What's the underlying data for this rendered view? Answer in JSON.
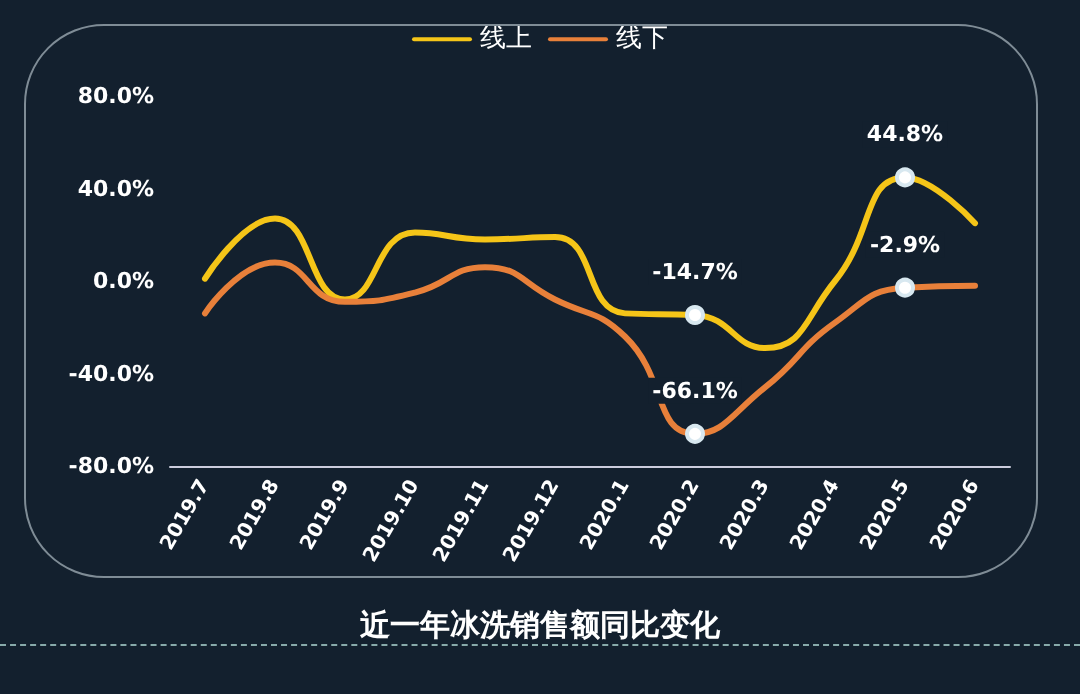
{
  "chart_data": {
    "type": "line",
    "title": "近一年冰洗销售额同比变化",
    "categories": [
      "2019.7",
      "2019.8",
      "2019.9",
      "2019.10",
      "2019.11",
      "2019.12",
      "2020.1",
      "2020.2",
      "2020.3",
      "2020.4",
      "2020.5",
      "2020.6"
    ],
    "series": [
      {
        "name": "线上",
        "color": "#f5c518",
        "values": [
          1,
          27,
          -8,
          21,
          18,
          19,
          -14,
          -14.7,
          -29,
          0,
          44.8,
          25
        ],
        "value_labels": [
          null,
          null,
          null,
          null,
          null,
          null,
          null,
          "-14.7%",
          null,
          null,
          "44.8%",
          null
        ]
      },
      {
        "name": "线下",
        "color": "#e8803a",
        "values": [
          -14,
          8,
          -9,
          -5,
          6,
          -8,
          -24,
          -66.1,
          -46,
          -18,
          -2.9,
          -2
        ],
        "value_labels": [
          null,
          null,
          null,
          null,
          null,
          null,
          null,
          "-66.1%",
          null,
          null,
          "-2.9%",
          null
        ]
      }
    ],
    "ylim": [
      -80,
      80
    ],
    "yticks": [
      {
        "value": -80,
        "label": "-80.0%"
      },
      {
        "value": -40,
        "label": "-40.0%"
      },
      {
        "value": 0,
        "label": "0.0%"
      },
      {
        "value": 40,
        "label": "40.0%"
      },
      {
        "value": 80,
        "label": "80.0%"
      }
    ],
    "grid": false,
    "legend": "top"
  }
}
